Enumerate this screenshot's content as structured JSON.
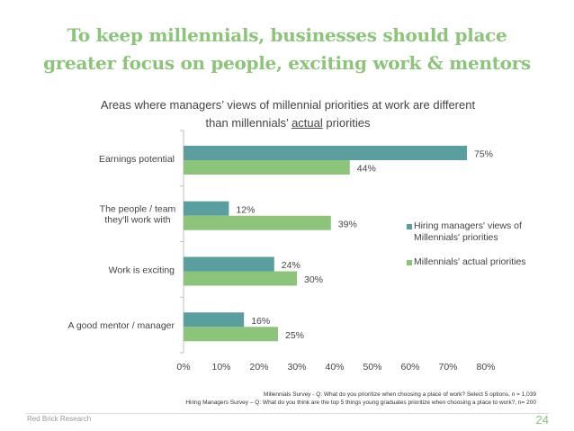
{
  "slide": {
    "title_line1": "To keep millennials, businesses should place",
    "title_line2": "greater focus on people, exciting work & mentors",
    "footer_brand": "Red Brick Research",
    "page_number": "24",
    "footnote_line1": "Millennials Survey - Q: What do you prioritize when choosing a place of work? Select 5 options,  n = 1,039",
    "footnote_line2": "Hiring Managers Survey – Q: What do you think are the top 5 things young graduates prioritize when choosing a place to work?, n= 200"
  },
  "chart_data": {
    "type": "bar",
    "orientation": "horizontal",
    "title_part1": "Areas where managers’ views of millennial priorities at work are different",
    "title_part2": "than millennials’ ",
    "title_underlined": "actual",
    "title_part3": " priorities",
    "categories": [
      "Earnings potential",
      "The people / team they'll work with",
      "Work is exciting",
      "A good mentor / manager"
    ],
    "category_lines": [
      [
        "Earnings potential"
      ],
      [
        "The people / team",
        "they'll work with"
      ],
      [
        "Work is exciting"
      ],
      [
        "A good mentor / manager"
      ]
    ],
    "series": [
      {
        "name": "Hiring managers' views of Millennials' priorities",
        "name_lines": [
          "Hiring managers' views of",
          "Millennials' priorities"
        ],
        "color": "#5b9ea0",
        "values": [
          75,
          12,
          24,
          16
        ],
        "labels": [
          "75%",
          "12%",
          "24%",
          "16%"
        ]
      },
      {
        "name": "Millennials' actual priorities",
        "name_lines": [
          "Millennials' actual priorities"
        ],
        "color": "#8cc47a",
        "values": [
          44,
          39,
          30,
          25
        ],
        "labels": [
          "44%",
          "39%",
          "30%",
          "25%"
        ]
      }
    ],
    "xlim": [
      0,
      80
    ],
    "xticks": [
      0,
      10,
      20,
      30,
      40,
      50,
      60,
      70,
      80
    ],
    "xtick_labels": [
      "0%",
      "10%",
      "20%",
      "30%",
      "40%",
      "50%",
      "60%",
      "70%",
      "80%"
    ],
    "grid": false,
    "legend_position": "right"
  }
}
